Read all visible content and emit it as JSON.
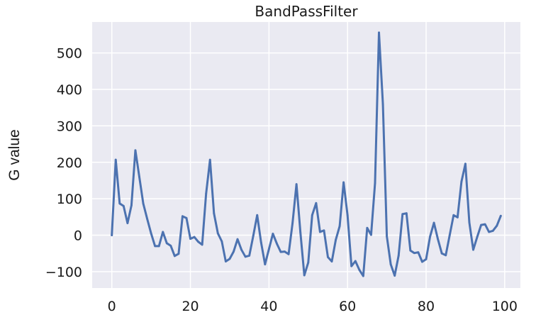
{
  "chart_data": {
    "type": "line",
    "title": "BandPassFilter",
    "xlabel": "",
    "ylabel": "G value",
    "xlim": [
      -5,
      104
    ],
    "ylim": [
      -145,
      585
    ],
    "xticks": [
      0,
      20,
      40,
      60,
      80,
      100
    ],
    "yticks": [
      -100,
      0,
      100,
      200,
      300,
      400,
      500
    ],
    "yticklabels": [
      "−100",
      "0",
      "100",
      "200",
      "300",
      "400",
      "500"
    ],
    "grid": true,
    "legend": "none",
    "style": {
      "background": "#eaeaf2",
      "grid_color": "#ffffff",
      "line_color": "#4c72b0"
    },
    "series": [
      {
        "x": [
          0,
          1,
          2,
          3,
          4,
          5,
          6,
          7,
          8,
          9,
          10,
          11,
          12,
          13,
          14,
          15,
          16,
          17,
          18,
          19,
          20,
          21,
          22,
          23,
          24,
          25,
          26,
          27,
          28,
          29,
          30,
          31,
          32,
          33,
          34,
          35,
          36,
          37,
          38,
          39,
          40,
          41,
          42,
          43,
          44,
          45,
          46,
          47,
          48,
          49,
          50,
          51,
          52,
          53,
          54,
          55,
          56,
          57,
          58,
          59,
          60,
          61,
          62,
          63,
          64,
          65,
          66,
          67,
          68,
          69,
          70,
          71,
          72,
          73,
          74,
          75,
          76,
          77,
          78,
          79,
          80,
          81,
          82,
          83,
          84,
          85,
          86,
          87,
          88,
          89,
          90,
          91,
          92,
          93,
          94,
          95,
          96,
          97,
          98,
          99
        ],
        "values": [
          0,
          207,
          87,
          80,
          33,
          82,
          233,
          160,
          87,
          45,
          5,
          -30,
          -30,
          9,
          -22,
          -29,
          -57,
          -51,
          52,
          47,
          -10,
          -5,
          -18,
          -26,
          114,
          207,
          60,
          5,
          -17,
          -72,
          -65,
          -45,
          -11,
          -40,
          -59,
          -56,
          -2,
          55,
          -20,
          -80,
          -38,
          4,
          -23,
          -46,
          -45,
          -52,
          33,
          140,
          8,
          -110,
          -75,
          55,
          88,
          9,
          13,
          -60,
          -72,
          -13,
          25,
          145,
          55,
          -85,
          -71,
          -95,
          -112,
          20,
          1,
          143,
          556,
          360,
          -3,
          -80,
          -111,
          -56,
          58,
          60,
          -42,
          -49,
          -47,
          -73,
          -66,
          -4,
          34,
          -11,
          -50,
          -55,
          0,
          55,
          49,
          147,
          196,
          35,
          -40,
          -5,
          28,
          30,
          9,
          12,
          26,
          53
        ]
      }
    ]
  }
}
